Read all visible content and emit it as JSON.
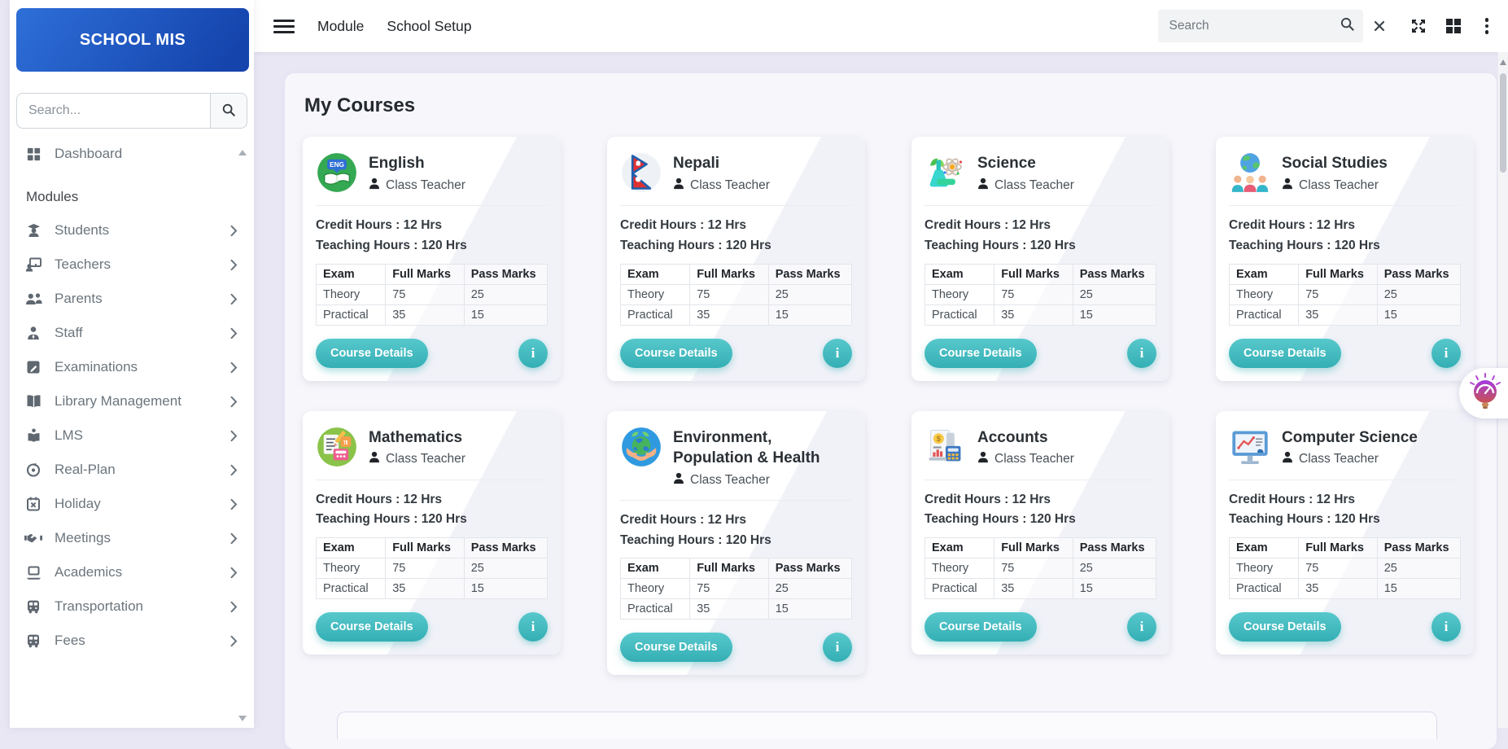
{
  "sidebar": {
    "logo_text": "SCHOOL MIS",
    "search_placeholder": "Search...",
    "dashboard_label": "Dashboard",
    "section_label": "Modules",
    "items": [
      {
        "label": "Students",
        "icon": "students-icon"
      },
      {
        "label": "Teachers",
        "icon": "teachers-icon"
      },
      {
        "label": "Parents",
        "icon": "parents-icon"
      },
      {
        "label": "Staff",
        "icon": "staff-icon"
      },
      {
        "label": "Examinations",
        "icon": "examinations-icon"
      },
      {
        "label": "Library Management",
        "icon": "library-icon"
      },
      {
        "label": "LMS",
        "icon": "lms-icon"
      },
      {
        "label": "Real-Plan",
        "icon": "realplan-icon"
      },
      {
        "label": "Holiday",
        "icon": "holiday-icon"
      },
      {
        "label": "Meetings",
        "icon": "meetings-icon"
      },
      {
        "label": "Academics",
        "icon": "academics-icon"
      },
      {
        "label": "Transportation",
        "icon": "transportation-icon"
      },
      {
        "label": "Fees",
        "icon": "fees-icon"
      }
    ]
  },
  "topbar": {
    "links": [
      {
        "label": "Module"
      },
      {
        "label": "School Setup"
      }
    ],
    "search_placeholder": "Search"
  },
  "main": {
    "title": "My Courses",
    "course_defaults": {
      "teacher_label": "Class Teacher",
      "credit_hours_label": "Credit Hours : 12 Hrs",
      "teaching_hours_label": "Teaching Hours : 120 Hrs",
      "details_button_label": "Course Details",
      "info_button_glyph": "i",
      "exam_table": {
        "headers": [
          "Exam",
          "Full Marks",
          "Pass Marks"
        ],
        "rows": [
          {
            "exam": "Theory",
            "full_marks": "75",
            "pass_marks": "25"
          },
          {
            "exam": "Practical",
            "full_marks": "35",
            "pass_marks": "15"
          }
        ]
      }
    },
    "courses": [
      {
        "title": "English",
        "icon": "english-course-icon"
      },
      {
        "title": "Nepali",
        "icon": "nepali-course-icon"
      },
      {
        "title": "Science",
        "icon": "science-course-icon"
      },
      {
        "title": "Social Studies",
        "icon": "social-studies-course-icon"
      },
      {
        "title": "Mathematics",
        "icon": "mathematics-course-icon"
      },
      {
        "title": "Environment, Population & Health",
        "icon": "environment-course-icon"
      },
      {
        "title": "Accounts",
        "icon": "accounts-course-icon"
      },
      {
        "title": "Computer Science",
        "icon": "computer-science-course-icon"
      }
    ]
  },
  "colors": {
    "sidebar_header_gradient_start": "#2e6fd8",
    "sidebar_header_gradient_end": "#1544ad",
    "accent_teal": "#3fbfc4",
    "link_text": "#212529",
    "muted_text": "#6c757d"
  }
}
